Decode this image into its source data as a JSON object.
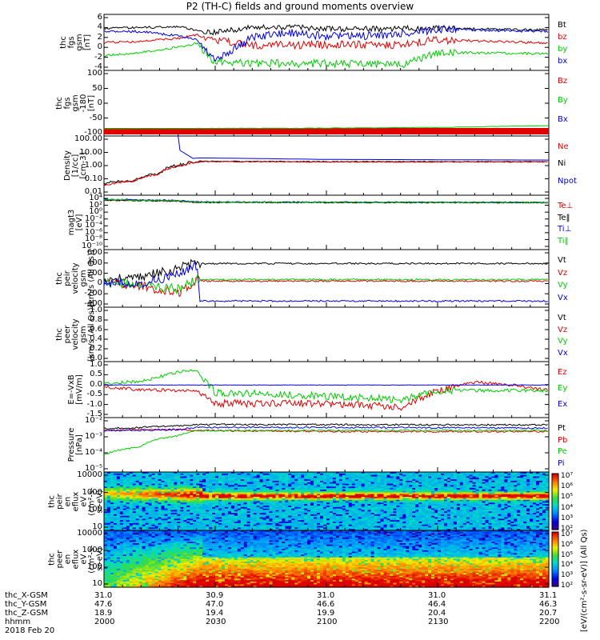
{
  "title": "P2 (TH-C) fields and ground moments overview",
  "colors": {
    "black": "#000000",
    "red": "#e00000",
    "green": "#00cc00",
    "blue": "#0000e0"
  },
  "panels": [
    {
      "id": "fgs",
      "ylabel": [
        "thc",
        "fgs",
        "gsm",
        "[nT]"
      ],
      "yticks": [
        "6",
        "4",
        "2",
        "0",
        "-2",
        "-4"
      ],
      "legend": [
        {
          "text": "Bt",
          "color": "#000000"
        },
        {
          "text": "bz",
          "color": "#e00000"
        },
        {
          "text": "by",
          "color": "#00cc00"
        },
        {
          "text": "bx",
          "color": "#0000e0"
        }
      ]
    },
    {
      "id": "fgs2",
      "ylabel": [
        "thc",
        "fgs",
        "gsm",
        "-180",
        "[nT]"
      ],
      "yticks": [
        "100",
        "50",
        "0",
        "-50",
        "-100"
      ],
      "legend": [
        {
          "text": "Bz",
          "color": "#e00000"
        },
        {
          "text": "By",
          "color": "#00cc00"
        },
        {
          "text": "Bx",
          "color": "#0000e0"
        }
      ]
    },
    {
      "id": "density",
      "ylabel": [
        "Density",
        "[1/cc]",
        "[cm-3]"
      ],
      "yticks": [
        "100.00",
        "10.00",
        "1.00",
        "0.10",
        "0.01"
      ],
      "legend": [
        {
          "text": "Ne",
          "color": "#e00000"
        },
        {
          "text": "Ni",
          "color": "#000000"
        },
        {
          "text": "Npot",
          "color": "#0000e0"
        }
      ]
    },
    {
      "id": "temp",
      "ylabel": [
        "magt3",
        "[eV]"
      ],
      "yticks": [
        "10⁴",
        "10²",
        "10⁰",
        "10⁻²",
        "10⁻⁴",
        "10⁻⁶",
        "10⁻⁸",
        "10⁻¹⁰"
      ],
      "legend": [
        {
          "text": "Te⊥",
          "color": "#e00000"
        },
        {
          "text": "Te‖",
          "color": "#000000"
        },
        {
          "text": "Ti⊥",
          "color": "#0000e0"
        },
        {
          "text": "Ti‖",
          "color": "#00cc00"
        }
      ]
    },
    {
      "id": "vi",
      "ylabel": [
        "thc",
        "peir",
        "velocity",
        "gsm",
        "[km/s (All Qs)]"
      ],
      "yticks": [
        "600",
        "400",
        "200",
        "0",
        "-200",
        "-400"
      ],
      "legend": [
        {
          "text": "Vt",
          "color": "#000000"
        },
        {
          "text": "Vz",
          "color": "#e00000"
        },
        {
          "text": "Vy",
          "color": "#00cc00"
        },
        {
          "text": "Vx",
          "color": "#0000e0"
        }
      ]
    },
    {
      "id": "ve",
      "ylabel": [
        "thc",
        "peer",
        "velocity",
        "gsm",
        "[km/s (All Qs)]"
      ],
      "yticks": [
        "1.0",
        "0.8",
        "0.6",
        "0.4",
        "0.2",
        "0.0"
      ],
      "legend": [
        {
          "text": "Vt",
          "color": "#000000"
        },
        {
          "text": "Vz",
          "color": "#e00000"
        },
        {
          "text": "Vy",
          "color": "#00cc00"
        },
        {
          "text": "Vx",
          "color": "#0000e0"
        }
      ]
    },
    {
      "id": "efield",
      "ylabel": [
        "E=-VxB",
        "[mV/m]"
      ],
      "yticks": [
        "1.0",
        "0.5",
        "0.0",
        "-0.5",
        "-1.0",
        "-1.5"
      ],
      "legend": [
        {
          "text": "Ez",
          "color": "#e00000"
        },
        {
          "text": "Ey",
          "color": "#00cc00"
        },
        {
          "text": "Ex",
          "color": "#0000e0"
        }
      ]
    },
    {
      "id": "pressure",
      "ylabel": [
        "Pressure",
        "[nPa]"
      ],
      "yticks": [
        "10⁻²",
        "10⁻³",
        "10⁻⁴",
        "10⁻⁵"
      ],
      "legend": [
        {
          "text": "Pt",
          "color": "#000000"
        },
        {
          "text": "Pb",
          "color": "#e00000"
        },
        {
          "text": "Pe",
          "color": "#00cc00"
        },
        {
          "text": "Pi",
          "color": "#0000e0"
        }
      ]
    },
    {
      "id": "ispec",
      "ylabel": [
        "thc",
        "peir",
        "en",
        "eflux",
        "eV",
        "(cm²-s-",
        "sr-eV)"
      ],
      "yticks": [
        "10000",
        "1000",
        "100",
        "10"
      ],
      "legend": []
    },
    {
      "id": "espec",
      "ylabel": [
        "thc",
        "peer",
        "en",
        "eflux",
        "eV",
        "(cm²-s-",
        "sr-eV)"
      ],
      "yticks": [
        "10000",
        "1000",
        "100",
        "10"
      ],
      "legend": []
    }
  ],
  "colorbar": {
    "ticks": [
      "10⁷",
      "10⁶",
      "10⁵",
      "10⁴",
      "10³",
      "10²"
    ],
    "label_ion": "[eV/(cm²-s-sr-eV)] (All Qs)",
    "label_elec": "[eV/(cm²-s-sr-eV)] (All Qs)"
  },
  "orbit": {
    "rows": [
      {
        "label": "thc_X-GSM",
        "values": [
          "31.0",
          "30.9",
          "31.0",
          "31.0",
          "31.1"
        ]
      },
      {
        "label": "thc_Y-GSM",
        "values": [
          "47.6",
          "47.0",
          "46.6",
          "46.4",
          "46.3"
        ]
      },
      {
        "label": "thc_Z-GSM",
        "values": [
          "18.9",
          "19.4",
          "19.9",
          "20.4",
          "20.7"
        ]
      },
      {
        "label": "hhmm",
        "values": [
          "2000",
          "2030",
          "2100",
          "2130",
          "2200"
        ]
      }
    ],
    "date": "2018 Feb 20"
  },
  "chart_data": [
    {
      "type": "line",
      "title": "P2 (TH-C) fields and ground moments overview",
      "ylabel": "thc fgs gsm [nT]",
      "ylim": [
        -4,
        6
      ],
      "x": [
        2000,
        2010,
        2020,
        2025,
        2030,
        2040,
        2050,
        2100,
        2110,
        2120,
        2130,
        2140,
        2150,
        2200
      ],
      "series": [
        {
          "name": "Bt",
          "values": [
            3.8,
            4.0,
            4.2,
            3.5,
            3.0,
            4.0,
            4.2,
            3.7,
            3.7,
            3.8,
            3.9,
            3.7,
            3.6,
            3.5
          ]
        },
        {
          "name": "bz",
          "values": [
            1.0,
            1.2,
            1.8,
            2.6,
            1.5,
            0.5,
            0.4,
            0.5,
            0.6,
            0.4,
            1.5,
            1.3,
            1.1,
            0.9
          ]
        },
        {
          "name": "by",
          "values": [
            -1.7,
            -1.0,
            0.0,
            0.8,
            -3.0,
            -3.2,
            -3.3,
            -3.2,
            -3.4,
            -3.6,
            -1.0,
            -1.1,
            -1.2,
            -1.3
          ]
        },
        {
          "name": "bx",
          "values": [
            3.3,
            3.2,
            2.3,
            1.5,
            -2.8,
            2.0,
            3.0,
            2.2,
            2.3,
            2.6,
            3.7,
            3.5,
            3.3,
            3.2
          ]
        }
      ]
    },
    {
      "type": "line",
      "ylabel": "thc fgs gsm -180 [nT]",
      "ylim": [
        -140,
        100
      ],
      "x": [
        2000,
        2030,
        2100,
        2130,
        2200
      ],
      "series": [
        {
          "name": "Bz",
          "values": [
            -120,
            -120,
            -120,
            -120,
            -120
          ]
        },
        {
          "name": "By",
          "values": [
            -123,
            -122,
            -121,
            -118,
            -111
          ]
        }
      ]
    },
    {
      "type": "line",
      "ylabel": "Density [1/cc] [cm-3]",
      "ylim": [
        0.01,
        200
      ],
      "x": [
        2000,
        2008,
        2015,
        2022,
        2025,
        2100,
        2200
      ],
      "series": [
        {
          "name": "Ne",
          "values": [
            0.04,
            0.08,
            0.3,
            1.8,
            3.0,
            2.8,
            2.8
          ]
        },
        {
          "name": "Ni",
          "values": [
            0.05,
            0.09,
            0.35,
            2.0,
            3.2,
            3.0,
            3.0
          ]
        },
        {
          "name": "Npot",
          "values": [
            null,
            null,
            null,
            null,
            6.0,
            4.5,
            4.0
          ]
        }
      ]
    },
    {
      "type": "line",
      "ylabel": "magt3 [eV]",
      "ylim": [
        1e-10,
        10000.0
      ],
      "x": [
        2000,
        2020,
        2025,
        2200
      ],
      "series": [
        {
          "name": "Te⊥",
          "values": [
            3000,
            1500,
            700,
            600
          ]
        },
        {
          "name": "Te‖",
          "values": [
            3000,
            1500,
            700,
            600
          ]
        },
        {
          "name": "Ti⊥",
          "values": [
            5000,
            2500,
            900,
            700
          ]
        },
        {
          "name": "Ti‖",
          "values": [
            4000,
            2000,
            800,
            650
          ]
        }
      ]
    },
    {
      "type": "line",
      "ylabel": "thc peir velocity gsm [km/s (All Qs)]",
      "ylim": [
        -450,
        600
      ],
      "x": [
        2000,
        2010,
        2020,
        2025,
        2026,
        2100,
        2200
      ],
      "series": [
        {
          "name": "Vt",
          "values": [
            50,
            100,
            280,
            400,
            380,
            380,
            380
          ]
        },
        {
          "name": "Vz",
          "values": [
            0,
            -80,
            -220,
            20,
            20,
            20,
            20
          ]
        },
        {
          "name": "Vy",
          "values": [
            0,
            -50,
            -150,
            50,
            50,
            50,
            50
          ]
        },
        {
          "name": "Vx",
          "values": [
            0,
            -20,
            150,
            350,
            -390,
            -390,
            -390
          ]
        }
      ]
    },
    {
      "type": "line",
      "ylabel": "thc peer velocity gsm [km/s (All Qs)]",
      "ylim": [
        0,
        1
      ],
      "series": []
    },
    {
      "type": "line",
      "ylabel": "E=-VxB [mV/m]",
      "ylim": [
        -1.6,
        1.1
      ],
      "x": [
        2000,
        2010,
        2020,
        2025,
        2030,
        2100,
        2120,
        2130,
        2140,
        2150,
        2200
      ],
      "series": [
        {
          "name": "Ez",
          "values": [
            -0.1,
            -0.25,
            -0.3,
            -0.3,
            -1.0,
            -1.0,
            -1.2,
            -0.3,
            0.15,
            0.0,
            -0.3
          ]
        },
        {
          "name": "Ey",
          "values": [
            0.1,
            0.2,
            0.7,
            0.8,
            -0.4,
            -0.6,
            -0.8,
            -0.3,
            -0.3,
            -0.3,
            -0.3
          ]
        },
        {
          "name": "Ex",
          "values": [
            0,
            0,
            0,
            0,
            0,
            0,
            0,
            0,
            0,
            0,
            0
          ]
        }
      ]
    },
    {
      "type": "line",
      "ylabel": "Pressure [nPa]",
      "ylim": [
        1e-05,
        0.03
      ],
      "x": [
        2000,
        2010,
        2020,
        2025,
        2100,
        2200
      ],
      "series": [
        {
          "name": "Pt",
          "values": [
            0.008,
            0.01,
            0.013,
            0.016,
            0.016,
            0.015
          ]
        },
        {
          "name": "Pb",
          "values": [
            0.006,
            0.007,
            0.007,
            0.006,
            0.005,
            0.005
          ]
        },
        {
          "name": "Pe",
          "values": [
            0.0001,
            0.0004,
            0.0025,
            0.006,
            0.006,
            0.006
          ]
        },
        {
          "name": "Pi",
          "values": [
            0.006,
            0.006,
            0.007,
            0.01,
            0.01,
            0.009
          ]
        }
      ]
    },
    {
      "type": "heatmap",
      "ylabel": "thc peir en eflux eV (cm²-s-sr-eV)",
      "ylim": [
        5,
        20000
      ],
      "xlabel": "hhmm",
      "note": "ion energy flux; intense band near 500–1000 eV after 2026"
    },
    {
      "type": "heatmap",
      "ylabel": "thc peer en eflux eV (cm²-s-sr-eV)",
      "ylim": [
        5,
        20000
      ],
      "xlabel": "hhmm",
      "note": "electron energy flux; intense below 100 eV after 2026"
    }
  ]
}
